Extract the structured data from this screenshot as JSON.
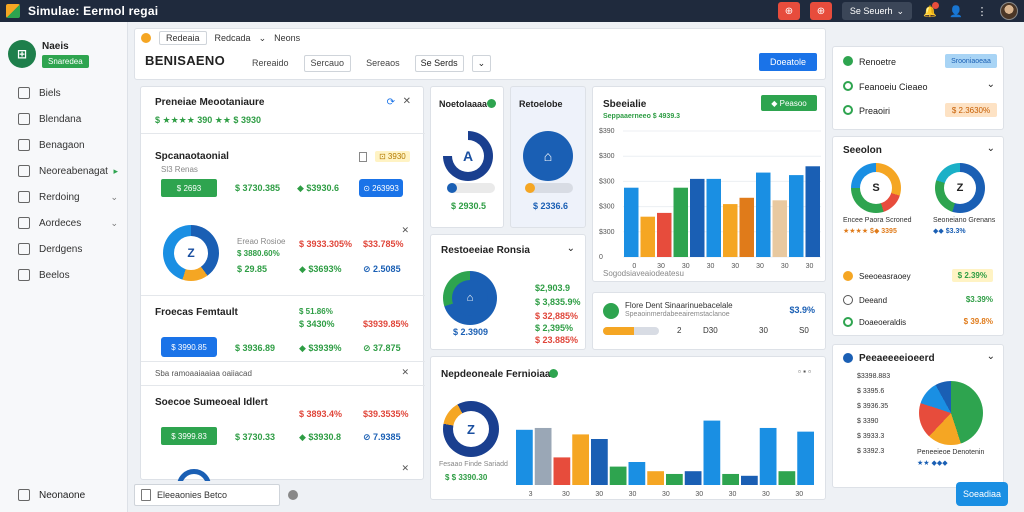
{
  "app": {
    "title": "Simulae: Eermol regai"
  },
  "topbar": {
    "red_btn_1": "⊕",
    "red_btn_2": "⊕",
    "dropdown_label": "Se Seuerh",
    "icons": [
      "bell-icon",
      "user-icon",
      "more-icon"
    ]
  },
  "sidebar": {
    "brand_name": "Naeis",
    "brand_badge": "Snaredea",
    "items": [
      {
        "label": "Biels",
        "chev": ""
      },
      {
        "label": "Blendana",
        "chev": ""
      },
      {
        "label": "Benagaon",
        "chev": ""
      },
      {
        "label": "Neoreabenagat",
        "chev": "▸"
      },
      {
        "label": "Rerdoing",
        "chev": "⌄"
      },
      {
        "label": "Aordeces",
        "chev": "⌄"
      },
      {
        "label": "Derdgens",
        "chev": ""
      },
      {
        "label": "Beelos",
        "chev": ""
      }
    ],
    "bottom": "Neonaone"
  },
  "toolbar": {
    "crumbs": [
      "Redeaia",
      "Redcada",
      "Neons"
    ],
    "title": "BENISAENO",
    "tabs": [
      "Rereaido",
      "Sercauo",
      "Sereaos"
    ],
    "select": "Se Serds",
    "select_arrow": "⌄",
    "primary": "Doeatole"
  },
  "left_panel": {
    "header": {
      "title": "Preneiae Meootaniaure",
      "values": "$ ★★★★ 390 ★★ $ 3930"
    },
    "sec1": {
      "title": "Spcanaotaonial",
      "sub": "Sl3 Renas",
      "pill": "⊡ 3930",
      "btn": "$ 2693",
      "v1": "$ 3730.385",
      "v2": "◆ $3930.6",
      "btn2": "⊙ 263993",
      "donut_label": "Z",
      "m1": "Ereao Rosioe",
      "m1v": "$ 3880.60%",
      "m2": "$ 3933.305%",
      "m3": "$33.785%",
      "m4": "$ 29.85",
      "m5": "◆ $3693%",
      "m6": "⊘ 2.5085"
    },
    "sec2": {
      "title": "Froecas Femtault",
      "btn": "$ 3990.85",
      "v1": "$ 51.86%",
      "v2": "$ 3430%",
      "v3": "$3939.85%",
      "v4": "$ 3936.89",
      "v5": "◆ $3939%",
      "v6": "⊘ 37.875",
      "footer": "Sba ramoaaiaaiaa oaiiacad"
    },
    "sec3": {
      "title": "Soecoe Sumeoeal Idlert",
      "v1": "$ 3893.4%",
      "v2": "$39.3535%",
      "btn": "$ 3999.83",
      "v3": "$ 3730.33",
      "v4": "◆ $3930.8",
      "v5": "⊘ 7.9385"
    }
  },
  "mini_cards": [
    {
      "title": "Noetolaaaa",
      "badge": "●",
      "donut": "A",
      "value": "$ 2930.5"
    },
    {
      "title": "Retoelobe",
      "donut": "⌂",
      "value": "$ 2336.6"
    }
  ],
  "bar_chart_1": {
    "title": "Sbeeialie",
    "sub": "Seppaaerneeo  $ 4939.3",
    "btn": "◆ Peasoo",
    "footer": "Sogodsiaveaiodeatesu"
  },
  "mini_card_3": {
    "title": "Restoeeiae Ronsia",
    "chev": "⌄",
    "v1": "$2,903.9",
    "v2": "$ 3,835.9%",
    "v3": "$ 32,885%",
    "v4": "$ 2,395%",
    "v5": "$ 23.885%",
    "center": "$ 2.3909"
  },
  "progress_card": {
    "title": "Flore Dent Sinaarinuebacelale",
    "value": "$3.9%",
    "sub": "Speaoinmerdabeeairemstaclanoe",
    "progress": 0.55,
    "labels": [
      "2",
      "D30",
      "30",
      "S0"
    ]
  },
  "bar_chart_2": {
    "title": "Nepdeoneale Fernioiaa",
    "sub": "Fesaao Finde Sariadd",
    "sub2": "$ $ 3390.30",
    "donut": "Z"
  },
  "right_panel": {
    "top": [
      {
        "label": "Renoetre",
        "pill": "Srooniaoeaa"
      },
      {
        "label": "Feanoeiu Cieaeo",
        "pill": "⌄"
      },
      {
        "label": "Preaoiri",
        "pill": "$ 2.3630%"
      }
    ],
    "donuts": {
      "title": "Seeolon",
      "d1": "S",
      "d1_label": "Encee Paora Scroned",
      "d1_stars": "★★★★ $◆ 3395",
      "d2": "Z",
      "d2_label": "Seoneiano Grenans",
      "d2_stars": "◆◆ $3.3%",
      "r1": "Seeoeasraoey",
      "r1v": "$ 2.39%",
      "r2": "Deeand",
      "r2v": "$3.39%",
      "r3": "Doaeoeraldis",
      "r3v": "$ 39.8%"
    },
    "pie_card": {
      "title": "Peeaeeeeioeerd",
      "chev": "⌄",
      "rows": [
        "$3398.883",
        "$ 3395.6",
        "$ 3936.35",
        "$ 3390",
        "$ 3933.3",
        "$ 3392.3"
      ],
      "legend": "Peneeieoe Denotenin",
      "legend2": "★★ ◆◆◆"
    }
  },
  "bottom": {
    "search_value": "Eleeaonies Betco",
    "float_btn": "Soeadiaa"
  },
  "colors": {
    "accent": "#1a73e8",
    "green": "#2ea44f",
    "orange": "#f5a623",
    "red": "#e74c3c",
    "dark": "#1f2a3d"
  }
}
